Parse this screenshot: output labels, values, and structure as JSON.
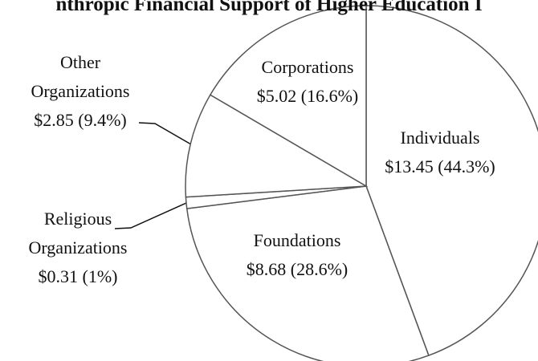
{
  "chart_data": {
    "type": "pie",
    "title": "nthropic Financial Support of Higher Education I",
    "categories": [
      "Individuals",
      "Foundations",
      "Religious Organizations",
      "Other Organizations",
      "Corporations"
    ],
    "values": [
      13.45,
      8.68,
      0.31,
      2.85,
      5.02
    ],
    "value_labels": [
      "$13.45 (44.3%)",
      "$8.68 (28.6%)",
      "$0.31 (1%)",
      "$2.85 (9.4%)",
      "$5.02 (16.6%)"
    ],
    "color": "#ffffff"
  }
}
